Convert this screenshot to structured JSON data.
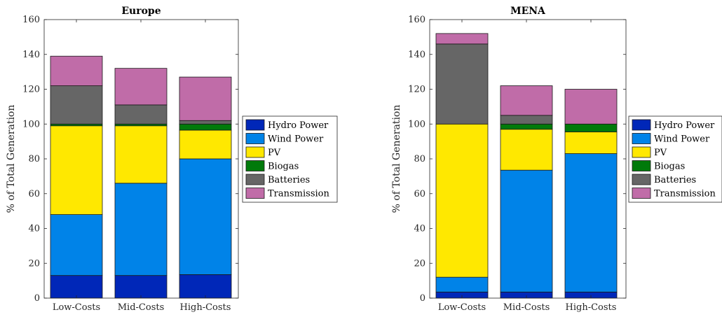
{
  "chart_data": [
    {
      "type": "bar",
      "stacked": true,
      "title": "Europe",
      "ylabel": "% of Total Generation",
      "xlabel": "",
      "ylim": [
        0,
        160
      ],
      "yticks": [
        0,
        20,
        40,
        60,
        80,
        100,
        120,
        140,
        160
      ],
      "categories": [
        "Low-Costs",
        "Mid-Costs",
        "High-Costs"
      ],
      "series": [
        {
          "name": "Hydro Power",
          "color": "#0027b8",
          "values": [
            13,
            13,
            13.5
          ]
        },
        {
          "name": "Wind Power",
          "color": "#0083e8",
          "values": [
            35,
            53,
            66.5
          ]
        },
        {
          "name": "PV",
          "color": "#ffe800",
          "values": [
            51,
            33,
            16.5
          ]
        },
        {
          "name": "Biogas",
          "color": "#007a0a",
          "values": [
            1,
            1,
            3.5
          ]
        },
        {
          "name": "Batteries",
          "color": "#666666",
          "values": [
            22,
            11,
            2
          ]
        },
        {
          "name": "Transmission",
          "color": "#c06ca8",
          "values": [
            17,
            21,
            25
          ]
        }
      ],
      "legend": "right"
    },
    {
      "type": "bar",
      "stacked": true,
      "title": "MENA",
      "ylabel": "% of Total Generation",
      "xlabel": "",
      "ylim": [
        0,
        160
      ],
      "yticks": [
        0,
        20,
        40,
        60,
        80,
        100,
        120,
        140,
        160
      ],
      "categories": [
        "Low-Costs",
        "Mid-Costs",
        "High-Costs"
      ],
      "series": [
        {
          "name": "Hydro Power",
          "color": "#0027b8",
          "values": [
            3.5,
            3.5,
            3.5
          ]
        },
        {
          "name": "Wind Power",
          "color": "#0083e8",
          "values": [
            8.5,
            70,
            79.5
          ]
        },
        {
          "name": "PV",
          "color": "#ffe800",
          "values": [
            88,
            23.5,
            12.5
          ]
        },
        {
          "name": "Biogas",
          "color": "#007a0a",
          "values": [
            0,
            3,
            4.5
          ]
        },
        {
          "name": "Batteries",
          "color": "#666666",
          "values": [
            46,
            5,
            0
          ]
        },
        {
          "name": "Transmission",
          "color": "#c06ca8",
          "values": [
            6,
            17,
            20
          ]
        }
      ],
      "legend": "right"
    }
  ]
}
